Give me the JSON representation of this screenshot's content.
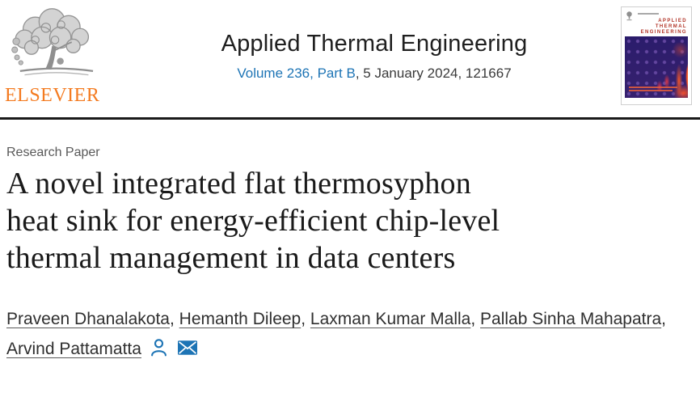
{
  "publisher": {
    "name": "ELSEVIER"
  },
  "journal": {
    "title": "Applied Thermal Engineering",
    "volume_link_text": "Volume 236, Part B",
    "citation_rest": ", 5 January 2024, 121667"
  },
  "cover": {
    "masthead": [
      "APPLIED",
      "THERMAL",
      "ENGINEERING"
    ]
  },
  "article": {
    "type_label": "Research Paper",
    "title": "A novel integrated flat thermosyphon heat sink for energy-efficient chip-level thermal management in data centers",
    "title_lines": [
      "A novel integrated flat thermosyphon",
      "heat sink for energy-efficient chip-level",
      "thermal management in data centers"
    ],
    "author_lines": [
      [
        "Praveen Dhanalakota",
        "Hemanth Dileep",
        "Laxman Kumar Malla",
        "Pallab Sinha Mahapatra"
      ],
      [
        "Arvind Pattamatta"
      ]
    ]
  },
  "icons": {
    "author_profile": "person-outline-icon",
    "correspondence": "envelope-icon"
  },
  "colors": {
    "link_blue": "#1d74b5",
    "elsevier_orange": "#f47b20",
    "masthead_red": "#b23427",
    "divider": "#1a1a1a"
  }
}
